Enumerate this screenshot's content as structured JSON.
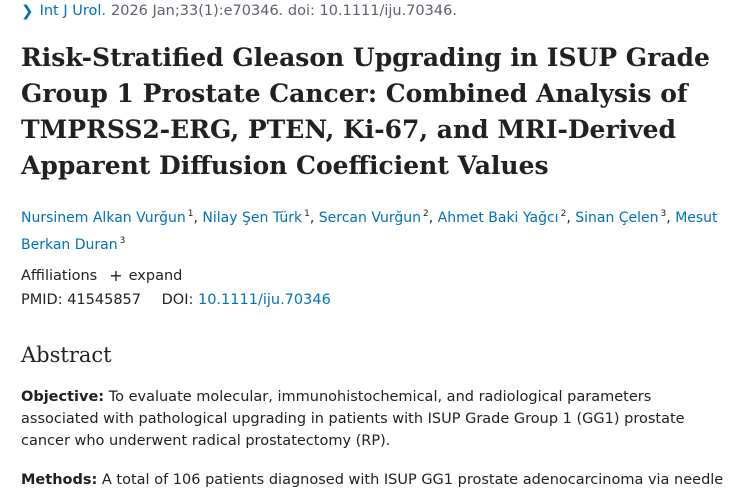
{
  "citation": {
    "icon": "chevron-right-icon",
    "journal": "Int J Urol.",
    "details": "2026 Jan;33(1):e70346. doi: 10.1111/iju.70346."
  },
  "title": "Risk-Stratified Gleason Upgrading in ISUP Grade Group 1 Prostate Cancer: Combined Analysis of TMPRSS2-ERG, PTEN, Ki-67, and MRI-Derived Apparent Diffusion Coefficient Values",
  "authors": [
    {
      "name": "Nursinem Alkan Vurğun",
      "aff": "1"
    },
    {
      "name": "Nilay Şen Türk",
      "aff": "1"
    },
    {
      "name": "Sercan Vurğun",
      "aff": "2"
    },
    {
      "name": "Ahmet Baki Yağcı",
      "aff": "2"
    },
    {
      "name": "Sinan Çelen",
      "aff": "3"
    },
    {
      "name": "Mesut Berkan Duran",
      "aff": "3"
    }
  ],
  "affiliations": {
    "label": "Affiliations",
    "expand_icon": "plus-icon",
    "expand_label": "expand"
  },
  "ids": {
    "pmid_label": "PMID:",
    "pmid": "41545857",
    "doi_label": "DOI:",
    "doi": "10.1111/iju.70346"
  },
  "abstract": {
    "heading": "Abstract",
    "objective_label": "Objective:",
    "objective_text": " To evaluate molecular, immunohistochemical, and radiological parameters associated with pathological upgrading in patients with ISUP Grade Group 1 (GG1) prostate cancer who underwent radical prostatectomy (RP).",
    "methods_label": "Methods:",
    "methods_text": " A total of 106 patients diagnosed with ISUP GG1 prostate adenocarcinoma via needle"
  }
}
